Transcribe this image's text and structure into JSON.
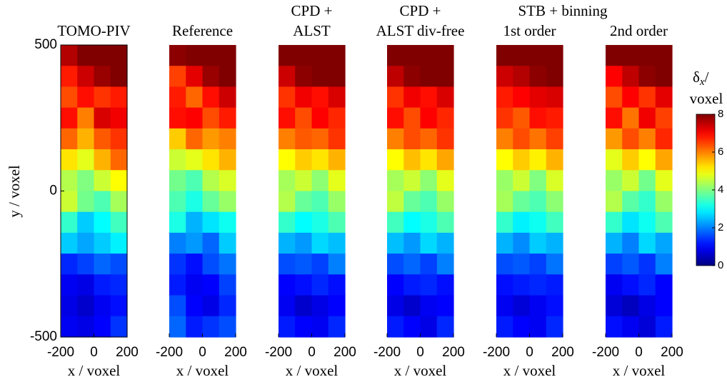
{
  "chart_data": [
    {
      "type": "heatmap",
      "title": [
        "TOMO-PIV"
      ],
      "xlabel": "x / voxel",
      "ylabel": "y / voxel",
      "xlim": [
        -200,
        200
      ],
      "ylim": [
        -500,
        500
      ],
      "xticks": [
        -200,
        0,
        200
      ],
      "yticks": [
        -500,
        0,
        500
      ],
      "frame": true,
      "z": [
        [
          7.6,
          8,
          8,
          8
        ],
        [
          6.8,
          7.4,
          7.8,
          8
        ],
        [
          6.4,
          6.9,
          6.6,
          6.8
        ],
        [
          6.9,
          6.0,
          7.3,
          7.1
        ],
        [
          6.2,
          5.6,
          6.3,
          6.6
        ],
        [
          5.2,
          4.8,
          5.6,
          6.2
        ],
        [
          4.4,
          4.0,
          4.6,
          5.0
        ],
        [
          4.6,
          3.9,
          3.6,
          4.3
        ],
        [
          3.4,
          2.6,
          3.0,
          3.5
        ],
        [
          2.6,
          2.3,
          2.6,
          2.9
        ],
        [
          1.3,
          1.5,
          1.8,
          1.6
        ],
        [
          0.9,
          0.8,
          1.2,
          1.3
        ],
        [
          0.8,
          0.6,
          0.9,
          1.1
        ],
        [
          0.9,
          0.8,
          1.0,
          1.4
        ]
      ]
    },
    {
      "type": "heatmap",
      "title": [
        "Reference"
      ],
      "xlabel": "x / voxel",
      "xlim": [
        -200,
        200
      ],
      "ylim": [
        -500,
        500
      ],
      "xticks": [
        -200,
        0,
        200
      ],
      "frame": false,
      "z": [
        [
          7.9,
          8,
          8,
          8
        ],
        [
          6.5,
          7.2,
          7.8,
          8
        ],
        [
          6.8,
          6.2,
          6.9,
          7.4
        ],
        [
          6.9,
          7.0,
          6.4,
          6.8
        ],
        [
          5.4,
          6.2,
          5.8,
          6.0
        ],
        [
          4.6,
          4.8,
          5.2,
          5.6
        ],
        [
          3.9,
          3.6,
          4.4,
          4.7
        ],
        [
          3.6,
          3.2,
          3.8,
          4.2
        ],
        [
          3.2,
          2.4,
          2.8,
          3.1
        ],
        [
          2.0,
          2.2,
          1.8,
          2.6
        ],
        [
          1.4,
          1.1,
          1.6,
          1.9
        ],
        [
          1.2,
          0.9,
          1.0,
          1.5
        ],
        [
          1.6,
          1.0,
          0.8,
          1.3
        ],
        [
          1.8,
          1.2,
          1.4,
          1.6
        ]
      ]
    },
    {
      "type": "heatmap",
      "title": [
        "CPD +",
        "ALST"
      ],
      "xlabel": "x / voxel",
      "xlim": [
        -200,
        200
      ],
      "ylim": [
        -500,
        500
      ],
      "xticks": [
        -200,
        0,
        200
      ],
      "frame": false,
      "z": [
        [
          8,
          8,
          8,
          8
        ],
        [
          7.4,
          7.9,
          8,
          8
        ],
        [
          6.6,
          7.1,
          6.9,
          7.3
        ],
        [
          6.9,
          6.4,
          7.0,
          6.7
        ],
        [
          6.0,
          6.3,
          6.2,
          6.6
        ],
        [
          5.0,
          5.4,
          5.2,
          5.6
        ],
        [
          4.3,
          4.6,
          4.1,
          4.8
        ],
        [
          4.4,
          3.8,
          3.6,
          4.2
        ],
        [
          3.4,
          3.0,
          3.2,
          3.6
        ],
        [
          2.4,
          2.2,
          2.7,
          2.5
        ],
        [
          1.6,
          1.7,
          1.5,
          2.0
        ],
        [
          1.0,
          1.1,
          1.3,
          1.1
        ],
        [
          0.9,
          0.6,
          0.8,
          1.0
        ],
        [
          1.2,
          1.0,
          0.9,
          1.3
        ]
      ]
    },
    {
      "type": "heatmap",
      "title": [
        "CPD +",
        "ALST div-free"
      ],
      "xlabel": "x / voxel",
      "xlim": [
        -200,
        200
      ],
      "ylim": [
        -500,
        500
      ],
      "xticks": [
        -200,
        0,
        200
      ],
      "frame": false,
      "z": [
        [
          8,
          8,
          8,
          8
        ],
        [
          7.5,
          7.9,
          8,
          8
        ],
        [
          6.6,
          7.1,
          6.9,
          7.3
        ],
        [
          6.9,
          6.4,
          7.0,
          6.7
        ],
        [
          6.0,
          6.4,
          6.2,
          6.6
        ],
        [
          5.0,
          5.5,
          5.2,
          5.7
        ],
        [
          4.3,
          4.6,
          4.1,
          4.8
        ],
        [
          4.5,
          3.8,
          3.6,
          4.2
        ],
        [
          3.5,
          3.0,
          3.2,
          3.6
        ],
        [
          2.5,
          2.2,
          2.7,
          2.4
        ],
        [
          1.6,
          1.8,
          1.5,
          2.0
        ],
        [
          1.0,
          1.2,
          1.3,
          1.1
        ],
        [
          0.8,
          0.6,
          0.9,
          1.0
        ],
        [
          1.2,
          1.0,
          0.8,
          1.3
        ]
      ]
    },
    {
      "type": "heatmap",
      "title": [
        "1st order"
      ],
      "xlabel": "x / voxel",
      "xlim": [
        -200,
        200
      ],
      "ylim": [
        -500,
        500
      ],
      "xticks": [
        -200,
        0,
        200
      ],
      "frame": false,
      "z": [
        [
          8,
          8,
          8,
          8
        ],
        [
          7.4,
          7.6,
          7.9,
          8
        ],
        [
          6.8,
          7.0,
          7.2,
          7.3
        ],
        [
          6.6,
          6.3,
          6.9,
          6.8
        ],
        [
          6.0,
          6.4,
          6.1,
          6.5
        ],
        [
          5.0,
          5.4,
          5.1,
          5.6
        ],
        [
          4.2,
          4.6,
          4.0,
          4.7
        ],
        [
          4.3,
          3.8,
          3.6,
          4.1
        ],
        [
          3.4,
          2.9,
          3.1,
          3.5
        ],
        [
          2.4,
          2.1,
          2.6,
          2.4
        ],
        [
          1.6,
          1.7,
          1.5,
          1.9
        ],
        [
          1.1,
          1.2,
          1.3,
          1.2
        ],
        [
          0.9,
          0.7,
          0.9,
          1.1
        ],
        [
          1.2,
          1.0,
          0.9,
          1.3
        ]
      ]
    },
    {
      "type": "heatmap",
      "title": [
        "2nd order"
      ],
      "xlabel": "x / voxel",
      "xlim": [
        -200,
        200
      ],
      "ylim": [
        -500,
        500
      ],
      "xticks": [
        -200,
        0,
        200
      ],
      "frame": false,
      "z": [
        [
          8,
          8,
          8,
          8
        ],
        [
          7.0,
          7.5,
          7.9,
          8
        ],
        [
          6.4,
          7.0,
          6.6,
          7.2
        ],
        [
          6.9,
          6.1,
          7.1,
          6.5
        ],
        [
          5.8,
          6.4,
          6.0,
          6.7
        ],
        [
          4.8,
          5.4,
          5.0,
          5.7
        ],
        [
          4.2,
          4.6,
          3.9,
          4.8
        ],
        [
          4.4,
          3.7,
          3.4,
          4.2
        ],
        [
          3.4,
          2.8,
          3.1,
          3.6
        ],
        [
          2.4,
          2.0,
          2.7,
          2.3
        ],
        [
          1.5,
          1.7,
          1.4,
          2.0
        ],
        [
          0.9,
          1.1,
          1.3,
          1.0
        ],
        [
          0.7,
          0.5,
          0.8,
          1.0
        ],
        [
          1.1,
          0.9,
          0.7,
          1.2
        ]
      ]
    }
  ],
  "group_title": "STB + binning",
  "colorbar": {
    "label": [
      "δ",
      "x",
      "/",
      "voxel"
    ],
    "colormap": "jet",
    "lim": [
      0,
      8
    ],
    "ticks": [
      0,
      2,
      4,
      6,
      8
    ]
  }
}
